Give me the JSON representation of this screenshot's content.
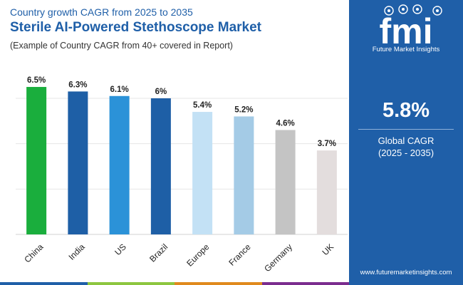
{
  "header": {
    "subtitle": "Country growth CAGR from 2025 to 2035",
    "title": "Sterile AI-Powered Stethoscope Market",
    "note": "(Example of Country CAGR from 40+ covered in Report)"
  },
  "chart_data": {
    "type": "bar",
    "title": "Sterile AI-Powered Stethoscope Market",
    "categories": [
      "China",
      "India",
      "US",
      "Brazil",
      "Europe",
      "France",
      "Germany",
      "UK"
    ],
    "values": [
      6.5,
      6.3,
      6.1,
      6.0,
      5.4,
      5.2,
      4.6,
      3.7
    ],
    "value_labels": [
      "6.5%",
      "6.3%",
      "6.1%",
      "6%",
      "5.4%",
      "5.2%",
      "4.6%",
      "3.7%"
    ],
    "bar_colors": [
      "#1aae3d",
      "#1e5fa6",
      "#2b92d8",
      "#1e5fa6",
      "#c3e1f5",
      "#a4cbe6",
      "#c4c4c4",
      "#e3dddd"
    ],
    "ylim": [
      0,
      7.6
    ],
    "gridlines": [
      2,
      4,
      6
    ],
    "grid": true,
    "xlabel": "",
    "ylabel": "",
    "legend": "none"
  },
  "side_panel": {
    "logo_letters": "fmi",
    "logo_caption": "Future Market Insights",
    "global_cagr_value": "5.8%",
    "global_cagr_label": "Global CAGR",
    "global_cagr_range": "(2025 - 2035)",
    "website": "www.futuremarketinsights.com",
    "background": "#1f5fa8"
  },
  "bottom_bar_colors": [
    "#1f5fa8",
    "#8dc63f",
    "#e08a1e",
    "#7b2d8e"
  ]
}
